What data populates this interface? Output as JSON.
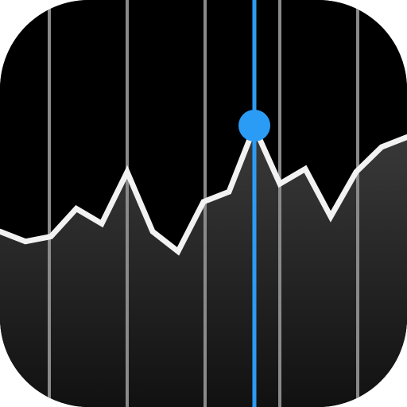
{
  "app_icon": {
    "name": "stocks-app-icon",
    "colors": {
      "background": "#000000",
      "grid_line": "#8a8a8a",
      "price_line": "#f2f2f2",
      "area_fill_top": "#3a3a3a",
      "area_fill_bottom": "#111111",
      "cursor": "#2b9cf5"
    }
  },
  "chart_data": {
    "type": "line",
    "x": [
      0,
      1,
      2,
      3,
      4,
      5,
      6,
      7,
      8,
      9,
      10,
      11,
      12,
      13,
      14,
      15,
      16
    ],
    "values": [
      5.5,
      4.5,
      5.0,
      7.8,
      6.3,
      11.5,
      5.5,
      3.5,
      8.5,
      9.5,
      16.0,
      10.3,
      11.8,
      7.0,
      11.5,
      14.0,
      15.0
    ],
    "highlight_index": 10,
    "grid_verticals_count": 6,
    "grid": true,
    "title": "",
    "xlabel": "",
    "ylabel": ""
  }
}
